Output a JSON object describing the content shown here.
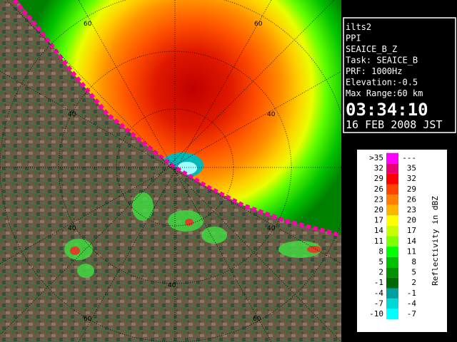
{
  "radar_info": [
    "ilts2",
    "PPI",
    "SEAICE_B_Z",
    "Task: SEAICE_B",
    "PRF: 1000Hz",
    "Elevation:-0.5",
    "Max Range:60 km"
  ],
  "time": "03:34:10",
  "date": "16 FEB 2008 JST",
  "range_rings": [
    "60",
    "60",
    "40",
    "40",
    "40",
    "40",
    "40",
    "60",
    "60"
  ],
  "legend": {
    "title": "Reflectivity in dBZ",
    "rows": [
      {
        "low": ">35",
        "high": "---",
        "color": "#ff00ff"
      },
      {
        "low": "32",
        "high": "35",
        "color": "#e80070"
      },
      {
        "low": "29",
        "high": "32",
        "color": "#ff0000"
      },
      {
        "low": "26",
        "high": "29",
        "color": "#ff4400"
      },
      {
        "low": "23",
        "high": "26",
        "color": "#ff8000"
      },
      {
        "low": "20",
        "high": "23",
        "color": "#ffb400"
      },
      {
        "low": "17",
        "high": "20",
        "color": "#ffff00"
      },
      {
        "low": "14",
        "high": "17",
        "color": "#c8ff00"
      },
      {
        "low": "11",
        "high": "14",
        "color": "#80ff00"
      },
      {
        "low": "8",
        "high": "11",
        "color": "#00ff00"
      },
      {
        "low": "5",
        "high": "8",
        "color": "#00c000"
      },
      {
        "low": "2",
        "high": "5",
        "color": "#009000"
      },
      {
        "low": "-1",
        "high": "2",
        "color": "#006800"
      },
      {
        "low": "-4",
        "high": "-1",
        "color": "#00a0a0"
      },
      {
        "low": "-7",
        "high": "-4",
        "color": "#00d8d8"
      },
      {
        "low": "-10",
        "high": "-7",
        "color": "#00ffff"
      }
    ]
  }
}
